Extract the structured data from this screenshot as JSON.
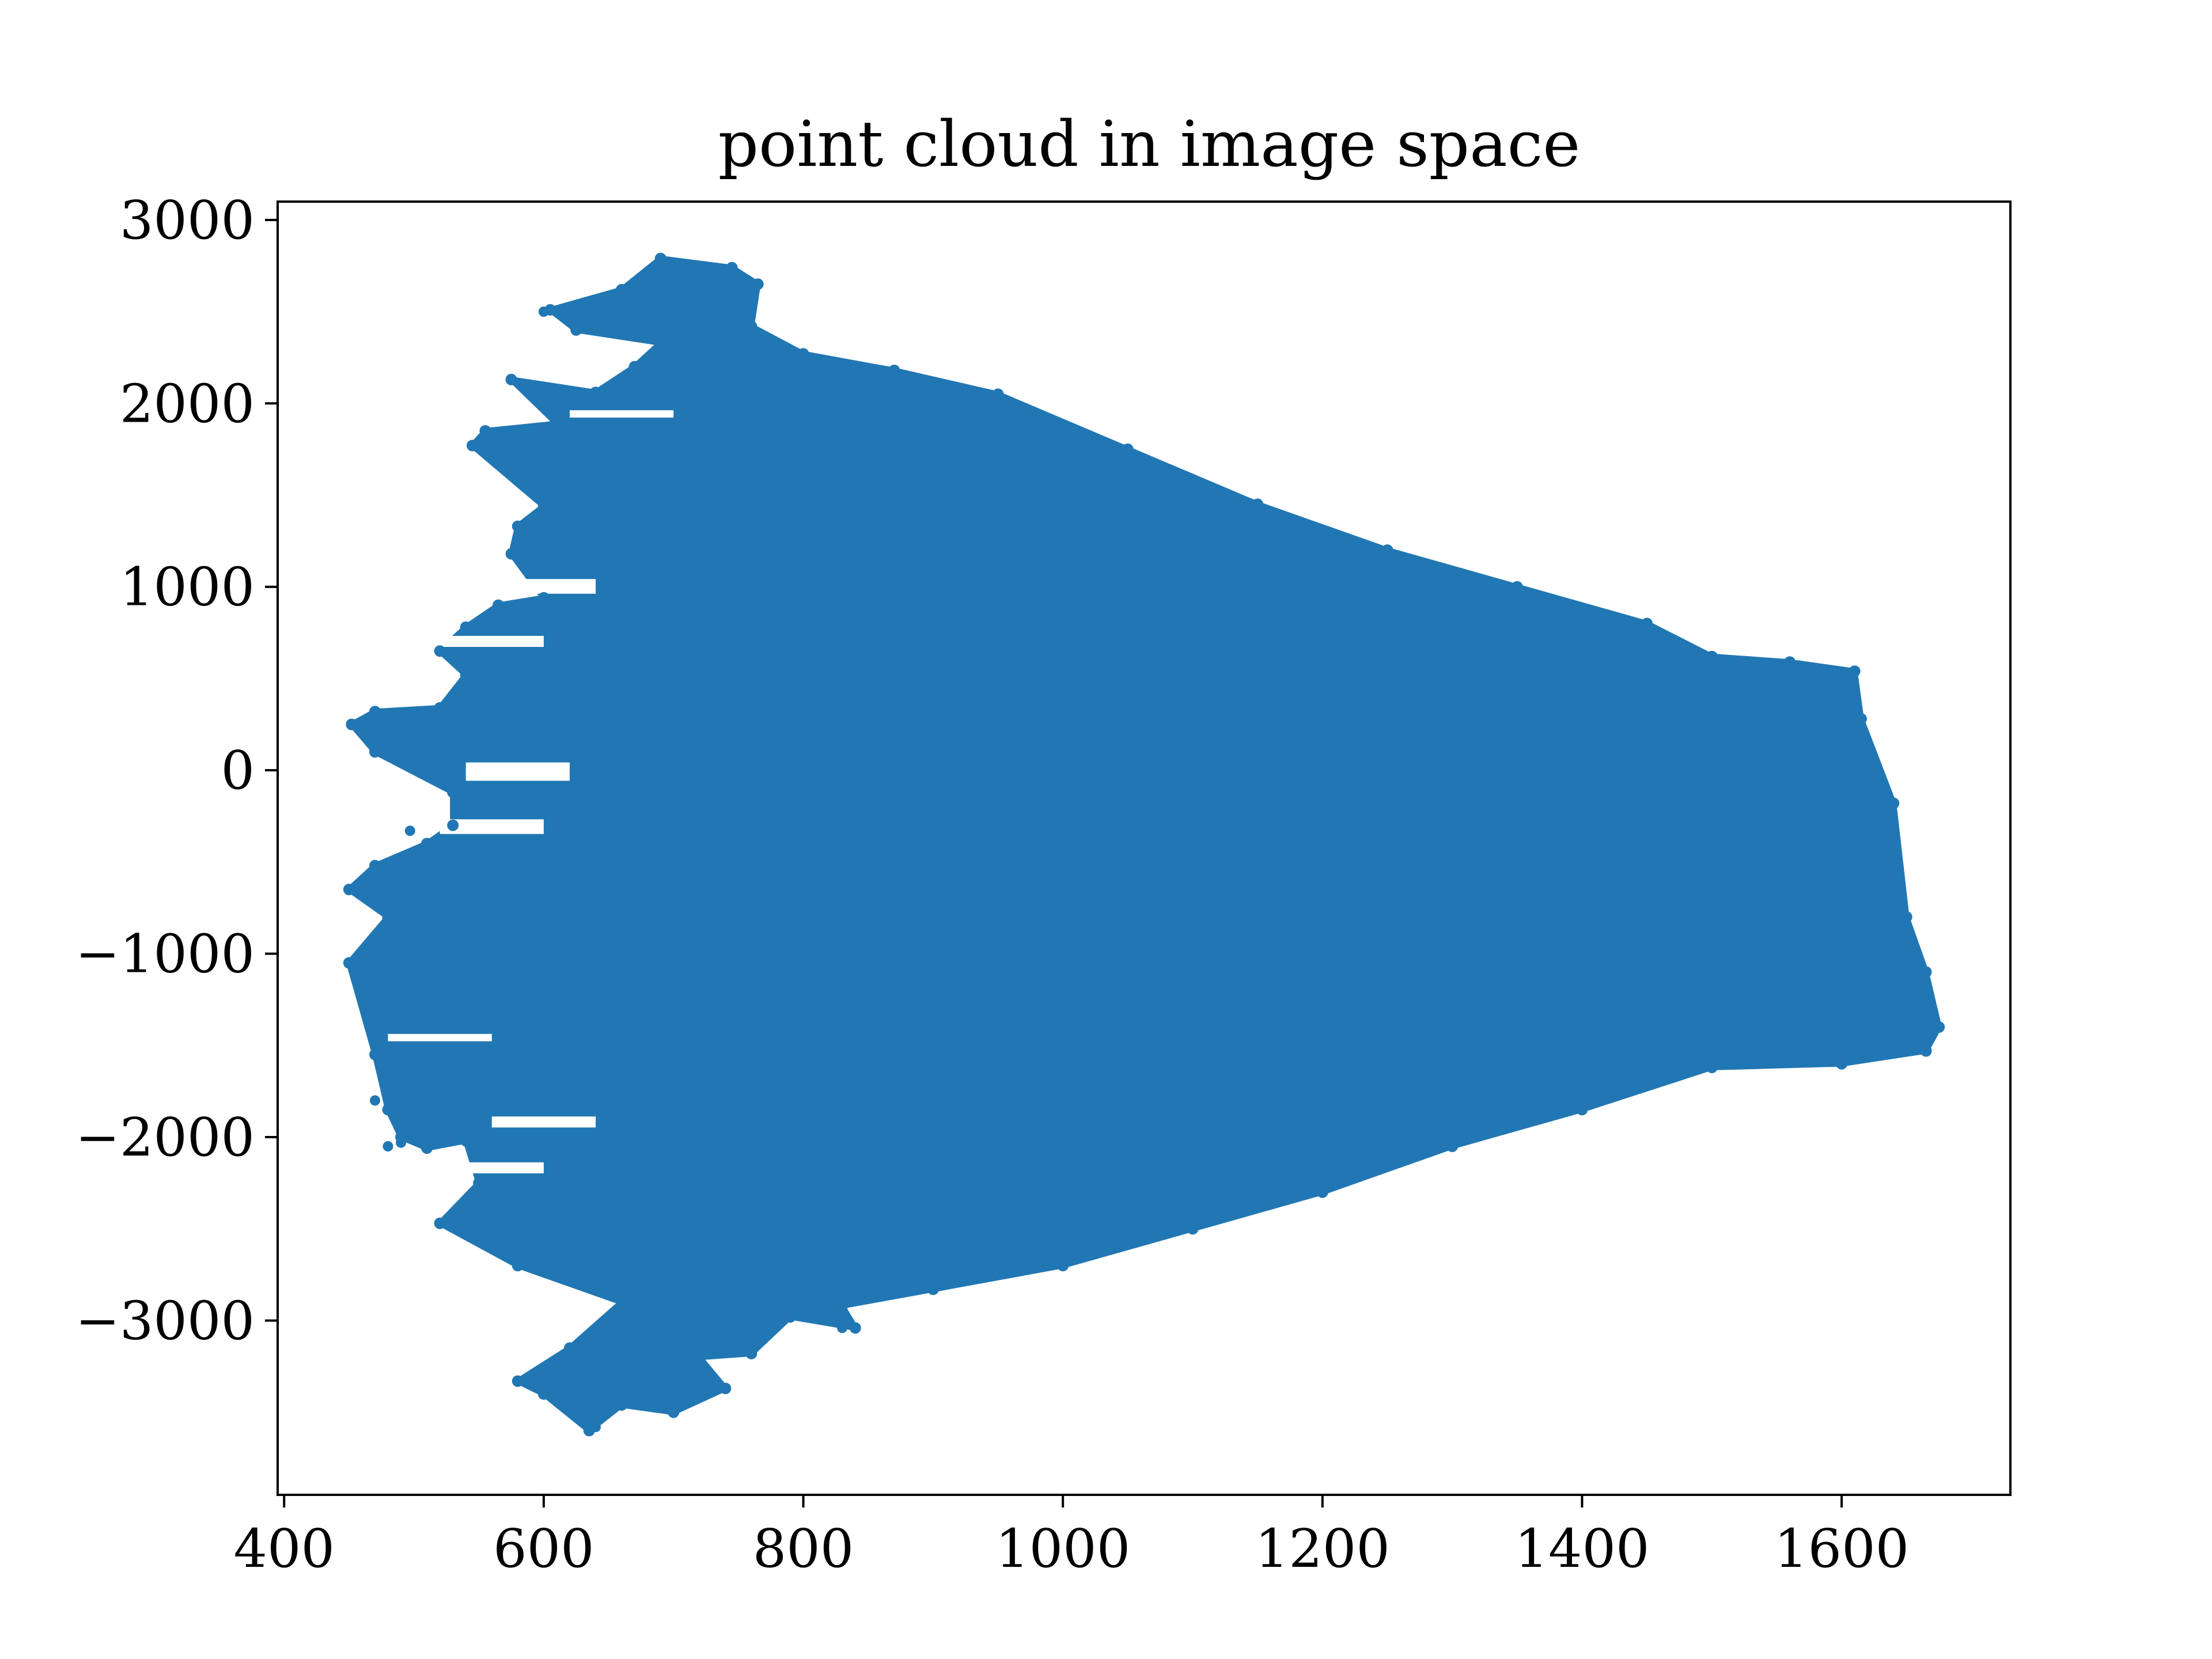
{
  "chart_data": {
    "type": "scatter",
    "title": "point cloud in image space",
    "xlabel": "",
    "ylabel": "",
    "xlim": [
      395,
      1730
    ],
    "ylim": [
      -3950,
      3100
    ],
    "xticks": [
      400,
      600,
      800,
      1000,
      1200,
      1400,
      1600
    ],
    "xtick_labels": [
      "400",
      "600",
      "800",
      "1000",
      "1200",
      "1400",
      "1600"
    ],
    "yticks": [
      3000,
      2000,
      1000,
      0,
      -1000,
      -2000,
      -3000
    ],
    "ytick_labels": [
      "3000",
      "2000",
      "1000",
      "0",
      "−1000",
      "−2000",
      "−3000"
    ],
    "grid": false,
    "legend": "none",
    "marker_color": "#2177b3",
    "series": [
      {
        "points_sampled": true,
        "outline_upper": [
          [
            452,
            250
          ],
          [
            470,
            320
          ],
          [
            520,
            340
          ],
          [
            540,
            520
          ],
          [
            520,
            650
          ],
          [
            540,
            780
          ],
          [
            565,
            900
          ],
          [
            600,
            940
          ],
          [
            575,
            1180
          ],
          [
            580,
            1330
          ],
          [
            600,
            1440
          ],
          [
            545,
            1770
          ],
          [
            555,
            1850
          ],
          [
            610,
            1890
          ],
          [
            575,
            2130
          ],
          [
            640,
            2060
          ],
          [
            670,
            2200
          ],
          [
            690,
            2330
          ],
          [
            625,
            2400
          ],
          [
            605,
            2510
          ],
          [
            660,
            2620
          ],
          [
            690,
            2790
          ],
          [
            745,
            2740
          ],
          [
            765,
            2650
          ],
          [
            760,
            2420
          ],
          [
            800,
            2270
          ],
          [
            870,
            2180
          ],
          [
            950,
            2050
          ],
          [
            1050,
            1750
          ],
          [
            1150,
            1450
          ],
          [
            1250,
            1200
          ],
          [
            1350,
            1000
          ],
          [
            1450,
            800
          ],
          [
            1500,
            620
          ],
          [
            1560,
            590
          ],
          [
            1610,
            540
          ],
          [
            1615,
            280
          ],
          [
            1640,
            -180
          ],
          [
            1650,
            -800
          ],
          [
            1665,
            -1100
          ],
          [
            1675,
            -1400
          ],
          [
            1665,
            -1530
          ]
        ],
        "outline_lower": [
          [
            1665,
            -1530
          ],
          [
            1600,
            -1600
          ],
          [
            1500,
            -1620
          ],
          [
            1400,
            -1850
          ],
          [
            1300,
            -2050
          ],
          [
            1200,
            -2300
          ],
          [
            1100,
            -2500
          ],
          [
            1000,
            -2700
          ],
          [
            900,
            -2830
          ],
          [
            830,
            -2920
          ],
          [
            840,
            -3040
          ],
          [
            790,
            -2980
          ],
          [
            760,
            -3180
          ],
          [
            720,
            -3200
          ],
          [
            740,
            -3370
          ],
          [
            700,
            -3500
          ],
          [
            660,
            -3460
          ],
          [
            635,
            -3600
          ],
          [
            600,
            -3400
          ],
          [
            580,
            -3330
          ],
          [
            620,
            -3150
          ],
          [
            660,
            -2900
          ],
          [
            580,
            -2700
          ],
          [
            520,
            -2470
          ],
          [
            550,
            -2250
          ],
          [
            540,
            -2020
          ],
          [
            510,
            -2060
          ],
          [
            490,
            -2000
          ],
          [
            480,
            -1850
          ],
          [
            470,
            -1550
          ],
          [
            450,
            -1050
          ],
          [
            480,
            -800
          ],
          [
            450,
            -650
          ],
          [
            470,
            -520
          ],
          [
            510,
            -400
          ],
          [
            530,
            -300
          ],
          [
            530,
            -120
          ],
          [
            470,
            100
          ],
          [
            452,
            250
          ]
        ],
        "notches": [
          {
            "x": 600,
            "y": -280,
            "depth": 80
          },
          {
            "x": 620,
            "y": 30,
            "depth": 100
          },
          {
            "x": 600,
            "y": 720,
            "depth": 60
          },
          {
            "x": 640,
            "y": 1030,
            "depth": 80
          },
          {
            "x": 560,
            "y": -1450,
            "depth": 40
          },
          {
            "x": 640,
            "y": -1900,
            "depth": 60
          },
          {
            "x": 600,
            "y": -2150,
            "depth": 60
          },
          {
            "x": 700,
            "y": 1950,
            "depth": 40
          }
        ],
        "outliers": [
          [
            497,
            -330
          ],
          [
            470,
            -1800
          ],
          [
            490,
            -1720
          ],
          [
            480,
            -2050
          ],
          [
            510,
            -1650
          ],
          [
            470,
            -1300
          ],
          [
            600,
            2500
          ],
          [
            612,
            2510
          ],
          [
            700,
            -3000
          ],
          [
            830,
            -3040
          ],
          [
            640,
            -3580
          ],
          [
            455,
            -1050
          ],
          [
            490,
            -2030
          ],
          [
            505,
            -2010
          ]
        ]
      }
    ]
  }
}
